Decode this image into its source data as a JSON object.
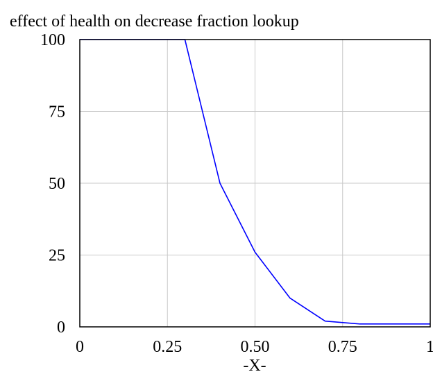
{
  "chart_data": {
    "type": "line",
    "title": "effect of health on decrease fraction lookup",
    "xlabel": "-X-",
    "ylabel": "",
    "xlim": [
      0,
      1
    ],
    "ylim": [
      0,
      100
    ],
    "x_ticks": [
      0,
      0.25,
      0.5,
      0.75,
      1
    ],
    "x_tick_labels": [
      "0",
      "0.25",
      "0.50",
      "0.75",
      "1"
    ],
    "y_ticks": [
      0,
      25,
      50,
      75,
      100
    ],
    "y_tick_labels": [
      "0",
      "25",
      "50",
      "75",
      "100"
    ],
    "grid": true,
    "series": [
      {
        "x": [
          0,
          0.1,
          0.2,
          0.3,
          0.4,
          0.5,
          0.6,
          0.7,
          0.8,
          0.9,
          1.0
        ],
        "y": [
          100,
          100,
          100,
          100,
          50,
          26,
          10,
          2,
          1,
          1,
          1
        ],
        "color": "#0000ff"
      }
    ]
  }
}
